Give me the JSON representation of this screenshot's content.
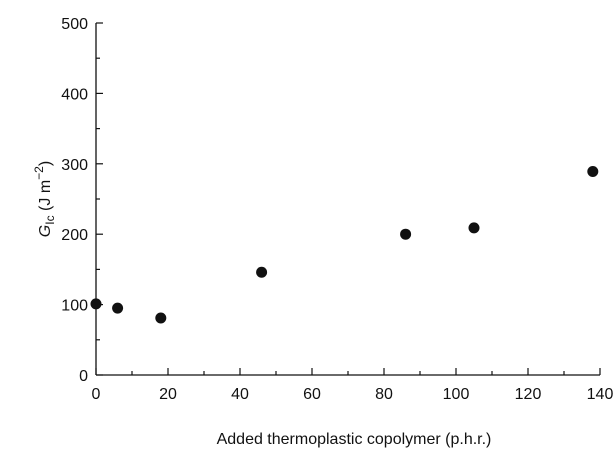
{
  "chart_data": {
    "type": "scatter",
    "xlabel": "Added thermoplastic copolymer (p.h.r.)",
    "ylabel": {
      "symbol": "G",
      "subscript": "Ic",
      "unit_open": " (J m",
      "superscript": "−2",
      "unit_close": ")"
    },
    "xlim": [
      0,
      140
    ],
    "ylim": [
      0,
      500
    ],
    "x_ticks": [
      0,
      20,
      40,
      60,
      80,
      100,
      120,
      140
    ],
    "y_ticks": [
      0,
      100,
      200,
      300,
      400,
      500
    ],
    "grid": false,
    "frame": "left-bottom",
    "marker_color": "#111111",
    "points": [
      {
        "x": 0,
        "y": 101
      },
      {
        "x": 6,
        "y": 95
      },
      {
        "x": 18,
        "y": 81
      },
      {
        "x": 46,
        "y": 146
      },
      {
        "x": 86,
        "y": 200
      },
      {
        "x": 105,
        "y": 209
      },
      {
        "x": 138,
        "y": 289
      }
    ]
  }
}
